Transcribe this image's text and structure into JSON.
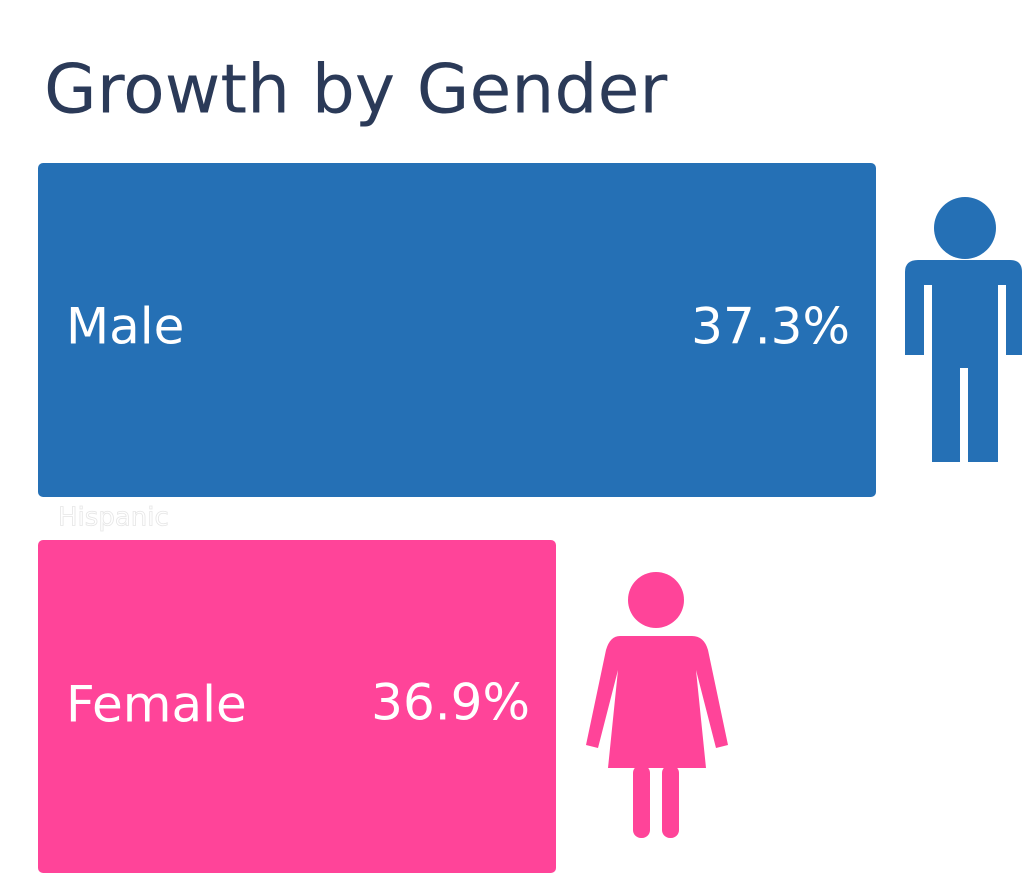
{
  "title": "Growth by Gender",
  "items": [
    {
      "label": "Male",
      "value": "37.3%"
    },
    {
      "label": "Female",
      "value": "36.9%"
    }
  ],
  "caption": "Hispanic"
}
